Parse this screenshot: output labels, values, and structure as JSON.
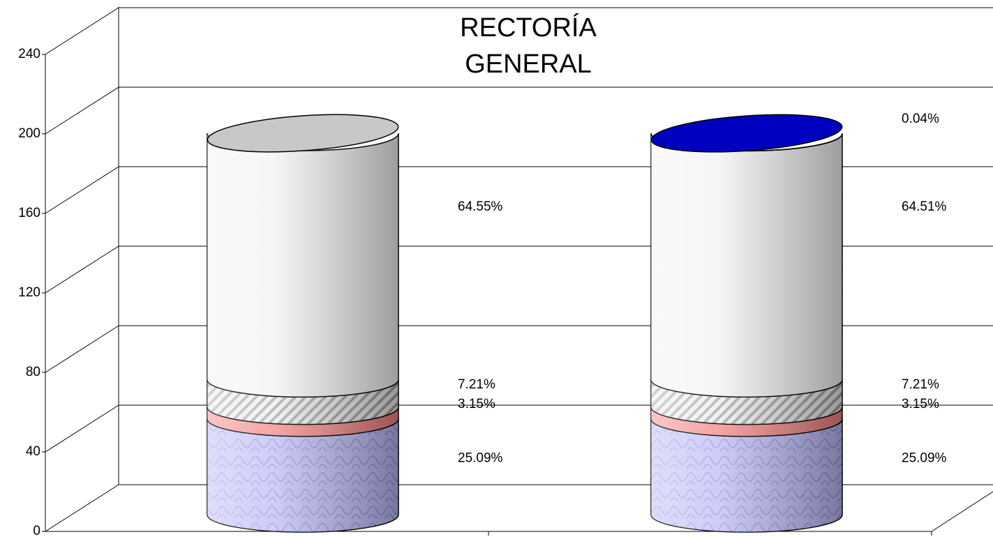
{
  "chart_data": {
    "type": "cylinder-stacked",
    "title": [
      "RECTORÍA",
      "GENERAL"
    ],
    "categories": [
      null,
      null
    ],
    "series": [
      {
        "color": "#b4b4f4",
        "values": [
          48.2,
          48.2
        ],
        "value_labels": [
          "25.09%",
          "25.09%"
        ]
      },
      {
        "color": "#f08080",
        "values": [
          6.0,
          6.0
        ],
        "value_labels": [
          "3.15%",
          "3.15%"
        ]
      },
      {
        "color": "#cccccc",
        "values": [
          13.8,
          13.8
        ],
        "value_labels": [
          "7.21%",
          "7.21%"
        ]
      },
      {
        "color": "#c8c8c8",
        "values": [
          123.9,
          123.8
        ],
        "value_labels": [
          "64.55%",
          "64.51%"
        ]
      },
      {
        "color": "#0000c0",
        "values": [
          null,
          0.08
        ],
        "value_labels": [
          null,
          "0.04%"
        ]
      }
    ],
    "ylim": [
      0,
      240
    ],
    "yticks": [
      0,
      40,
      80,
      120,
      160,
      200,
      240
    ],
    "grid": true
  }
}
